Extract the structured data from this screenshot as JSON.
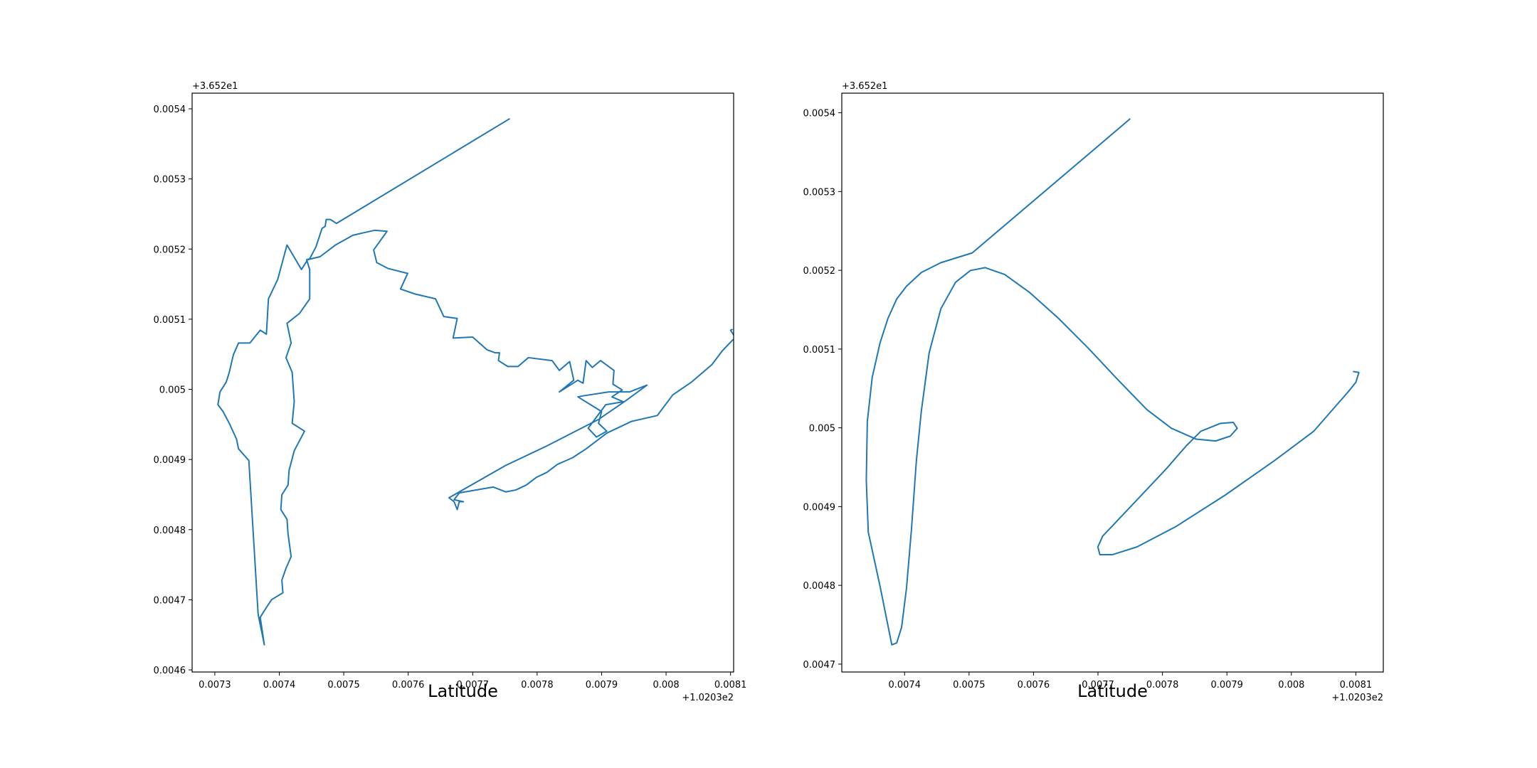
{
  "chart_data": [
    {
      "type": "line",
      "color": "#1f77b4",
      "x_label": "Latitude",
      "x_offset_label": "+1.0203e2",
      "y_offset_label": "+3.652e1",
      "xlim": [
        0.0072648,
        0.0081048
      ],
      "ylim": [
        0.004597,
        0.0054223
      ],
      "xticks": [
        0.0073,
        0.0074,
        0.0075,
        0.0076,
        0.0077,
        0.0078,
        0.0079,
        0.008,
        0.0081
      ],
      "yticks": [
        0.0046,
        0.0047,
        0.0048,
        0.0049,
        0.005,
        0.0051,
        0.0052,
        0.0053,
        0.0054
      ],
      "x": [
        0.0077576,
        0.0074888,
        0.0074792,
        0.0074728,
        0.0074712,
        0.0074664,
        0.0074568,
        0.0074472,
        0.0074424,
        0.0074472,
        0.0074472,
        0.0074312,
        0.007412,
        0.0074184,
        0.0074104,
        0.00742,
        0.0074232,
        0.00742,
        0.0074392,
        0.0074232,
        0.0074152,
        0.0074136,
        0.007404,
        0.0074024,
        0.007412,
        0.0074136,
        0.0074184,
        0.0074104,
        0.007404,
        0.0074056,
        0.007388,
        0.00738,
        0.0073704,
        0.0073768,
        0.0073672,
        0.0073528,
        0.0073368,
        0.0073336,
        0.0073224,
        0.0073128,
        0.0073048,
        0.007308,
        0.0073176,
        0.0073224,
        0.0073288,
        0.0073368,
        0.0073544,
        0.0073704,
        0.00738,
        0.0073832,
        0.0073976,
        0.007412,
        0.0074344,
        0.007444,
        0.0074632,
        0.0074872,
        0.0075144,
        0.007548,
        0.0075672,
        0.0075464,
        0.0075512,
        0.0075688,
        0.0075992,
        0.007588,
        0.0076104,
        0.0076424,
        0.0076552,
        0.007676,
        0.0076696,
        0.0077,
        0.0077224,
        0.0077352,
        0.0077416,
        0.00774,
        0.0077544,
        0.0077704,
        0.0077864,
        0.0078232,
        0.0078344,
        0.0078504,
        0.0078568,
        0.0078344,
        0.0078632,
        0.0078712,
        0.007876,
        0.0078856,
        0.0078984,
        0.0079192,
        0.0079176,
        0.007932,
        0.007916,
        0.0079336,
        0.0079064,
        0.0078792,
        0.007892,
        0.007908,
        0.0078952,
        0.0079,
        0.0078632,
        0.0078712,
        0.0079112,
        0.0079432,
        0.0079704,
        0.0079352,
        0.0078952,
        0.0078152,
        0.0077512,
        0.0076632,
        0.0076712,
        0.007676,
        0.0076792,
        0.0076856,
        0.0076712,
        0.0076792,
        0.007732,
        0.0077512,
        0.0077672,
        0.0077832,
        0.0077992,
        0.0078152,
        0.0078312,
        0.0078552,
        0.007876,
        0.007908,
        0.0079464,
        0.0079864,
        0.0080104,
        0.0080392,
        0.0080712,
        0.0080872,
        0.0081032,
        0.008108,
        0.0081,
        0.0081032
      ],
      "values": [
        0.005386,
        0.0052366,
        0.0052422,
        0.0052422,
        0.0052324,
        0.0052296,
        0.005203,
        0.0051863,
        0.0051849,
        0.0051709,
        0.005129,
        0.0051081,
        0.0050941,
        0.0050661,
        0.0050452,
        0.0050242,
        0.0049823,
        0.0049516,
        0.0049404,
        0.0049125,
        0.0048845,
        0.0048636,
        0.0048496,
        0.0048286,
        0.0048147,
        0.0047937,
        0.0047616,
        0.0047448,
        0.004728,
        0.0047099,
        0.0047001,
        0.0046889,
        0.004675,
        0.0046358,
        0.0046792,
        0.0048985,
        0.0049152,
        0.0049292,
        0.0049516,
        0.0049683,
        0.0049781,
        0.0049963,
        0.0050102,
        0.0050242,
        0.0050494,
        0.0050661,
        0.0050661,
        0.0050843,
        0.0050787,
        0.005129,
        0.0051569,
        0.0052058,
        0.0051709,
        0.0051849,
        0.0051891,
        0.0052058,
        0.0052198,
        0.0052268,
        0.0052254,
        0.0051988,
        0.0051807,
        0.0051723,
        0.0051653,
        0.005143,
        0.005136,
        0.005129,
        0.0051038,
        0.005101,
        0.0050731,
        0.0050745,
        0.0050563,
        0.0050521,
        0.0050521,
        0.005041,
        0.0050326,
        0.0050326,
        0.0050452,
        0.005041,
        0.005027,
        0.0050396,
        0.005013,
        0.0049963,
        0.005013,
        0.0050088,
        0.005041,
        0.0050312,
        0.005041,
        0.005027,
        0.0050074,
        0.0049991,
        0.0049893,
        0.0049823,
        0.0049781,
        0.0049446,
        0.004932,
        0.0049404,
        0.0049516,
        0.0049683,
        0.0049893,
        0.0049907,
        0.0049963,
        0.0049963,
        0.005006,
        0.0049823,
        0.0049571,
        0.0049194,
        0.0048915,
        0.0048454,
        0.0048398,
        0.0048286,
        0.0048398,
        0.0048398,
        0.0048426,
        0.0048524,
        0.0048607,
        0.0048538,
        0.0048566,
        0.0048636,
        0.0048747,
        0.0048817,
        0.0048929,
        0.0049027,
        0.0049152,
        0.0049376,
        0.0049543,
        0.0049627,
        0.0049921,
        0.0050102,
        0.0050354,
        0.0050549,
        0.0050703,
        0.0050731,
        0.0050843,
        0.0050857
      ]
    },
    {
      "type": "line",
      "color": "#1f77b4",
      "x_label": "Latitude",
      "x_offset_label": "+1.0203e2",
      "y_offset_label": "+3.652e1",
      "xlim": [
        0.0073026,
        0.0081426
      ],
      "ylim": [
        0.00469,
        0.0054249
      ],
      "xticks": [
        0.0074,
        0.0075,
        0.0076,
        0.0077,
        0.0078,
        0.0079,
        0.008,
        0.0081
      ],
      "yticks": [
        0.0047,
        0.0048,
        0.0049,
        0.005,
        0.0051,
        0.0052,
        0.0053,
        0.0054
      ],
      "x": [
        0.0077501,
        0.007505,
        0.0074563,
        0.0074259,
        0.007403,
        0.0073878,
        0.0073741,
        0.0073619,
        0.0073498,
        0.0073422,
        0.0073406,
        0.0073437,
        0.0073619,
        0.0073802,
        0.0073878,
        0.0073954,
        0.007403,
        0.0074107,
        0.0074183,
        0.0074259,
        0.0074381,
        0.0074563,
        0.0074791,
        0.007502,
        0.0075248,
        0.0075552,
        0.0075933,
        0.007639,
        0.0076846,
        0.0077303,
        0.0077759,
        0.007814,
        0.007852,
        0.0078825,
        0.0079053,
        0.007916,
        0.0079099,
        0.0078901,
        0.0078596,
        0.0078368,
        0.0078064,
        0.0077607,
        0.0077074,
        0.0076998,
        0.0077029,
        0.0077227,
        0.0077607,
        0.0078216,
        0.0078977,
        0.0079738,
        0.0080347,
        0.0080879,
        0.0081001,
        0.0081047,
        0.0080956
      ],
      "values": [
        0.0053925,
        0.0052221,
        0.0052097,
        0.0051972,
        0.0051798,
        0.0051636,
        0.0051388,
        0.0051077,
        0.0050641,
        0.0050081,
        0.0049335,
        0.0048676,
        0.0047991,
        0.0047245,
        0.004727,
        0.0047469,
        0.0047967,
        0.0048713,
        0.0049584,
        0.0050206,
        0.0050952,
        0.0051512,
        0.0051848,
        0.0051997,
        0.0052034,
        0.0051947,
        0.0051723,
        0.0051388,
        0.0051014,
        0.0050616,
        0.0050231,
        0.0049994,
        0.0049857,
        0.0049833,
        0.0049895,
        0.0049994,
        0.0050069,
        0.0050057,
        0.0049957,
        0.004977,
        0.0049484,
        0.0049086,
        0.0048626,
        0.0048489,
        0.004839,
        0.004839,
        0.0048489,
        0.004875,
        0.0049148,
        0.0049584,
        0.0049957,
        0.0050455,
        0.0050579,
        0.0050703,
        0.0050716
      ]
    }
  ]
}
